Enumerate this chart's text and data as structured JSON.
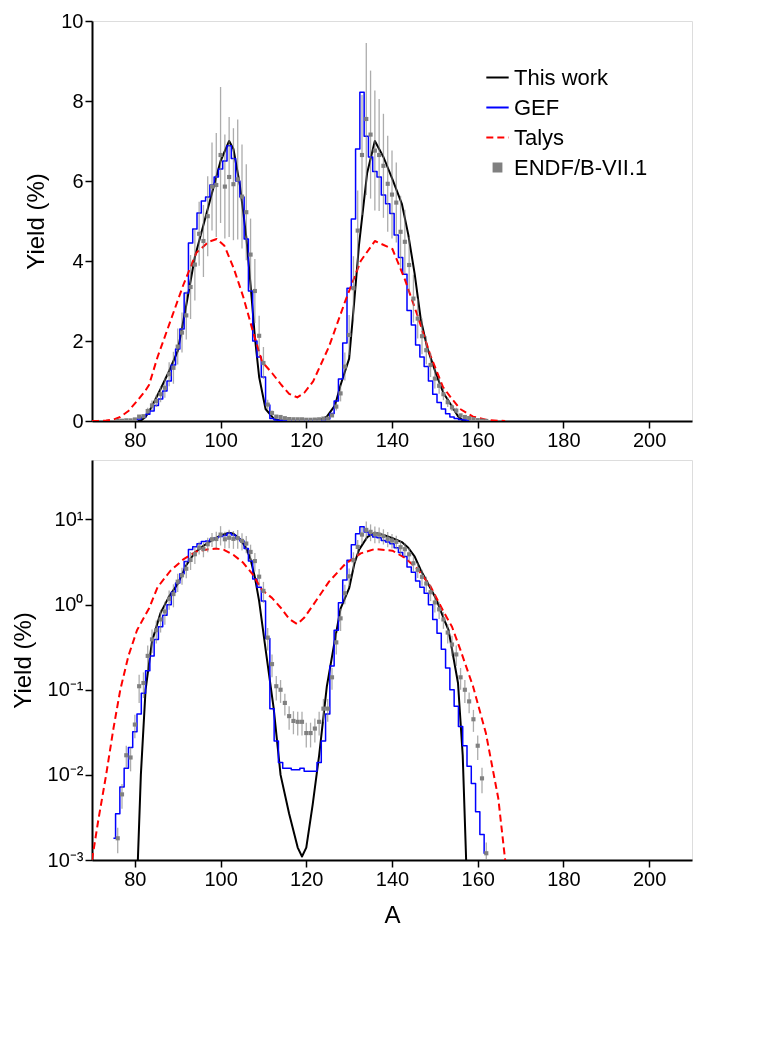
{
  "chart_data": [
    {
      "type": "line",
      "ylabel": "Yield (%)",
      "xlim": [
        70,
        210
      ],
      "xticks": [
        80,
        100,
        120,
        140,
        160,
        180,
        200
      ],
      "ylim": [
        0,
        10
      ],
      "yticks": [
        0,
        2,
        4,
        6,
        8,
        10
      ],
      "grid": false,
      "legend": "top right",
      "series": [
        {
          "name": "This work",
          "color": "#000000",
          "line_style": "solid",
          "x": [
            80.7,
            81.4,
            82.5,
            84,
            86,
            88,
            90,
            92,
            94,
            96,
            98,
            100,
            102,
            103,
            104.5,
            106,
            107,
            108,
            109,
            110.5,
            112.4,
            114,
            116,
            118,
            119,
            120,
            121.5,
            123,
            124.8,
            126.7,
            128,
            130,
            131.2,
            132.3,
            134.2,
            136,
            138,
            140,
            142.3,
            143.8,
            145.3,
            146.7,
            148.2,
            150.4,
            152,
            153.2,
            155.4,
            156.5,
            157.3
          ],
          "values": [
            0.001,
            0.01,
            0.1,
            0.37,
            0.8,
            1.25,
            1.75,
            2.9,
            4.1,
            4.9,
            5.7,
            6.5,
            7.0,
            6.8,
            5.9,
            4.6,
            3.4,
            2.1,
            1.1,
            0.3,
            0.06,
            0.01,
            0.0035,
            0.0014,
            0.0011,
            0.0014,
            0.0045,
            0.017,
            0.11,
            0.39,
            0.9,
            1.56,
            3.0,
            4.4,
            6.2,
            7.0,
            6.6,
            6.07,
            5.43,
            4.66,
            3.67,
            2.55,
            1.84,
            1.14,
            0.7,
            0.5,
            0.12,
            0.017,
            0.001
          ]
        },
        {
          "name": "GEF",
          "type": "step",
          "color": "#0000ff",
          "line_style": "solid",
          "x": [
            80,
            81,
            82,
            83,
            84,
            85,
            86,
            87,
            88,
            89,
            90,
            91,
            92,
            93,
            94,
            95,
            96,
            97,
            98,
            99,
            100,
            101,
            102,
            103,
            104,
            105,
            106,
            107,
            108,
            109,
            110,
            111,
            112,
            113,
            114,
            115,
            116,
            117,
            118,
            119,
            120,
            121,
            122,
            123,
            124,
            125,
            126,
            127,
            128,
            129,
            130,
            131,
            132,
            133,
            134,
            135,
            136,
            137,
            138,
            139,
            140,
            141,
            142,
            143,
            144,
            145,
            146,
            147,
            148,
            149,
            150,
            151,
            152,
            153,
            154,
            155,
            156,
            157,
            158
          ],
          "values": [
            0.032,
            0.052,
            0.091,
            0.167,
            0.25,
            0.39,
            0.55,
            0.75,
            1.0,
            1.4,
            1.8,
            2.3,
            3.2,
            4.45,
            4.8,
            5.2,
            5.5,
            5.6,
            5.9,
            6.1,
            6.3,
            6.5,
            6.88,
            6.56,
            6.0,
            5.6,
            4.55,
            3.25,
            2.0,
            1.6,
            1.1,
            0.4,
            0.06,
            0.025,
            0.014,
            0.012,
            0.012,
            0.0115,
            0.0115,
            0.012,
            0.011,
            0.011,
            0.011,
            0.014,
            0.025,
            0.052,
            0.19,
            0.5,
            1.05,
            1.95,
            3.32,
            5.05,
            6.8,
            8.22,
            7.12,
            6.6,
            6.24,
            6.1,
            5.65,
            5.43,
            5.19,
            4.65,
            4.09,
            3.67,
            2.76,
            2.4,
            1.9,
            1.6,
            1.36,
            1.0,
            0.67,
            0.46,
            0.3,
            0.18,
            0.1,
            0.064,
            0.037,
            0.022,
            0.0126
          ]
        },
        {
          "name": "Talys",
          "color": "#ff0000",
          "line_style": "dashed",
          "x": [
            70,
            71.5,
            73.3,
            75,
            76.6,
            78.5,
            80.5,
            82.4,
            83.3,
            85.3,
            88.3,
            91.3,
            94.3,
            97.2,
            99.1,
            100.9,
            103.1,
            105.3,
            107.5,
            109.7,
            112,
            114.2,
            116,
            117.9,
            119.5,
            121.6,
            125.3,
            129,
            132.7,
            136,
            140.1,
            143,
            146,
            149,
            151.9,
            154,
            155.9,
            158.9,
            161.9,
            164.8,
            166.4
          ],
          "values": [
            0.001,
            0.003,
            0.01,
            0.035,
            0.1,
            0.25,
            0.5,
            0.75,
            0.9,
            1.6,
            2.5,
            3.4,
            4.2,
            4.48,
            4.55,
            4.38,
            3.81,
            3.1,
            2.26,
            1.48,
            1.2,
            0.9,
            0.68,
            0.59,
            0.7,
            0.99,
            1.86,
            2.97,
            4.0,
            4.5,
            4.3,
            3.54,
            2.62,
            1.63,
            0.85,
            0.55,
            0.3,
            0.11,
            0.031,
            0.0053,
            0.001
          ]
        },
        {
          "name": "ENDF/B-VII.1",
          "type": "scatter",
          "color": "#808080",
          "marker": "square",
          "x": [
            76,
            77,
            78,
            79,
            80,
            81,
            82,
            83,
            84,
            85,
            86,
            87,
            88,
            89,
            90,
            91,
            92,
            93,
            94,
            95,
            96,
            97,
            98,
            99,
            100,
            101,
            102,
            103,
            104,
            105,
            106,
            107,
            108,
            109,
            110,
            111,
            112,
            113,
            114,
            115,
            116,
            117,
            118,
            119,
            120,
            121,
            122,
            123,
            124,
            125,
            126,
            127,
            128,
            129,
            130,
            131,
            132,
            133,
            134,
            135,
            136,
            137,
            138,
            139,
            140,
            141,
            142,
            143,
            144,
            145,
            146,
            147,
            148,
            149,
            150,
            151,
            152,
            153,
            154,
            155,
            156,
            157,
            158,
            159,
            160,
            161,
            162
          ],
          "values": [
            0.0018,
            0.0059,
            0.017,
            0.016,
            0.039,
            0.11,
            0.12,
            0.25,
            0.39,
            0.5,
            0.67,
            0.83,
            1.17,
            1.33,
            1.86,
            2.21,
            2.64,
            3.35,
            3.91,
            4.68,
            4.5,
            5.12,
            5.86,
            5.9,
            6.65,
            5.86,
            6.1,
            5.92,
            6.04,
            5.61,
            5.22,
            4.16,
            3.25,
            2.13,
            1.45,
            0.41,
            0.2,
            0.11,
            0.1,
            0.07,
            0.049,
            0.043,
            0.042,
            0.042,
            0.031,
            0.031,
            0.035,
            0.042,
            0.06,
            0.06,
            0.14,
            0.36,
            0.69,
            1.36,
            2.15,
            3.32,
            4.76,
            6.65,
            7.55,
            7.16,
            6.76,
            6.65,
            6.38,
            5.93,
            5.66,
            5.46,
            4.73,
            4.48,
            3.9,
            3.06,
            2.56,
            2.12,
            1.77,
            1.4,
            1.06,
            0.88,
            0.67,
            0.47,
            0.34,
            0.26,
            0.14,
            0.1,
            0.073,
            0.045,
            0.022,
            0.0091,
            0.0012
          ],
          "errors": [
            null,
            null,
            null,
            null,
            null,
            0.04,
            0.04,
            0.08,
            0.12,
            0.15,
            0.2,
            0.25,
            0.3,
            0.4,
            0.45,
            0.5,
            0.6,
            0.8,
            0.9,
            0.8,
            0.9,
            1.0,
            1.1,
            1.3,
            1.7,
            1.3,
            1.5,
            1.4,
            1.5,
            1.3,
            1.2,
            0.9,
            0.8,
            0.5,
            0.4,
            0.12,
            0.06,
            0.035,
            0.03,
            0.02,
            null,
            null,
            null,
            null,
            null,
            null,
            null,
            null,
            null,
            null,
            0.04,
            0.1,
            0.2,
            0.35,
            0.5,
            0.8,
            1.0,
            1.5,
            1.9,
            1.6,
            1.5,
            1.4,
            1.3,
            1.2,
            1.1,
            1.0,
            0.9,
            0.8,
            0.7,
            0.6,
            0.5,
            0.45,
            0.35,
            0.3,
            0.25,
            0.2,
            0.15,
            0.12,
            0.09,
            0.07,
            0.04,
            0.03,
            0.02,
            null,
            null,
            null,
            null
          ]
        }
      ]
    },
    {
      "type": "line",
      "xlabel": "A",
      "ylabel": "Yield (%)",
      "log": "y",
      "xlim": [
        70,
        210
      ],
      "xticks": [
        80,
        100,
        120,
        140,
        160,
        180,
        200
      ],
      "ylim": [
        0.001,
        50
      ],
      "yticks": [
        {
          "value": 0.001,
          "label": "10⁻³"
        },
        {
          "value": 0.01,
          "label": "10⁻²"
        },
        {
          "value": 0.1,
          "label": "10⁻¹"
        },
        {
          "value": 1,
          "label": "10⁰"
        },
        {
          "value": 10,
          "label": "10¹"
        }
      ],
      "grid": false,
      "series": [
        {
          "name": "This work",
          "color": "#000000",
          "line_style": "solid",
          "x": [
            80.7,
            81.4,
            82.5,
            84,
            86,
            88,
            90,
            92,
            94,
            96,
            98,
            100,
            102,
            103,
            104.5,
            106,
            107,
            108,
            109,
            110.5,
            112.4,
            114,
            116,
            118,
            119,
            120,
            121.5,
            123,
            124.8,
            126.7,
            128,
            130,
            131.2,
            132.3,
            134.2,
            136,
            138,
            140,
            142.3,
            143.8,
            145.3,
            146.7,
            148.2,
            150.4,
            152,
            153.2,
            155.4,
            156.5,
            157.3
          ],
          "values": [
            0.001,
            0.01,
            0.1,
            0.37,
            0.8,
            1.25,
            1.75,
            2.9,
            4.1,
            4.9,
            5.7,
            6.5,
            7.0,
            6.8,
            5.9,
            4.6,
            3.4,
            2.1,
            1.1,
            0.3,
            0.06,
            0.01,
            0.0035,
            0.0014,
            0.0011,
            0.0014,
            0.0045,
            0.017,
            0.11,
            0.39,
            0.9,
            1.56,
            3.0,
            4.4,
            6.2,
            7.0,
            6.6,
            6.07,
            5.43,
            4.66,
            3.67,
            2.55,
            1.84,
            1.14,
            0.7,
            0.5,
            0.12,
            0.017,
            0.001
          ]
        },
        {
          "name": "GEF",
          "type": "step",
          "color": "#0000ff",
          "line_style": "solid",
          "x": [
            75,
            76,
            77,
            78,
            79,
            80,
            81,
            82,
            83,
            84,
            85,
            86,
            87,
            88,
            89,
            90,
            91,
            92,
            93,
            94,
            95,
            96,
            97,
            98,
            99,
            100,
            101,
            102,
            103,
            104,
            105,
            106,
            107,
            108,
            109,
            110,
            111,
            112,
            113,
            114,
            115,
            116,
            117,
            118,
            119,
            120,
            121,
            122,
            123,
            124,
            125,
            126,
            127,
            128,
            129,
            130,
            131,
            132,
            133,
            134,
            135,
            136,
            137,
            138,
            139,
            140,
            141,
            142,
            143,
            144,
            145,
            146,
            147,
            148,
            149,
            150,
            151,
            152,
            153,
            154,
            155,
            156,
            157,
            158,
            159,
            160,
            161,
            162
          ],
          "values": [
            0.0018,
            0.0035,
            0.0072,
            0.012,
            0.021,
            0.032,
            0.052,
            0.091,
            0.167,
            0.25,
            0.39,
            0.55,
            0.75,
            1.0,
            1.4,
            1.8,
            2.3,
            3.2,
            4.45,
            4.8,
            5.2,
            5.5,
            5.6,
            5.9,
            6.1,
            6.3,
            6.5,
            6.88,
            6.56,
            6.0,
            5.6,
            4.55,
            3.25,
            2.0,
            1.6,
            1.1,
            0.4,
            0.06,
            0.025,
            0.014,
            0.012,
            0.012,
            0.0115,
            0.0115,
            0.012,
            0.011,
            0.011,
            0.011,
            0.014,
            0.025,
            0.052,
            0.19,
            0.5,
            1.05,
            1.95,
            3.32,
            5.05,
            6.8,
            8.22,
            7.12,
            6.6,
            6.24,
            6.1,
            5.65,
            5.43,
            5.19,
            4.65,
            4.09,
            3.67,
            2.76,
            2.4,
            1.9,
            1.6,
            1.36,
            1.0,
            0.67,
            0.46,
            0.3,
            0.18,
            0.1,
            0.064,
            0.037,
            0.022,
            0.0126,
            0.0079,
            0.0037,
            0.002,
            0.0012
          ]
        },
        {
          "name": "Talys",
          "color": "#ff0000",
          "line_style": "dashed",
          "x": [
            70,
            71.5,
            73.3,
            75,
            76.6,
            78.5,
            80.5,
            82.4,
            83.3,
            85.3,
            88.3,
            91.3,
            94.3,
            97.2,
            99.1,
            100.9,
            103.1,
            105.3,
            107.5,
            109.7,
            112,
            114.2,
            116,
            117.9,
            119.5,
            121.6,
            125.3,
            129,
            132.7,
            136,
            140.1,
            143,
            146,
            149,
            151.9,
            154,
            155.9,
            158.9,
            161.9,
            164.8,
            166.4
          ],
          "values": [
            0.001,
            0.003,
            0.01,
            0.035,
            0.1,
            0.25,
            0.5,
            0.75,
            0.9,
            1.6,
            2.5,
            3.4,
            4.2,
            4.48,
            4.55,
            4.38,
            3.81,
            3.1,
            2.26,
            1.48,
            1.2,
            0.9,
            0.68,
            0.59,
            0.7,
            0.99,
            1.86,
            2.97,
            4.0,
            4.5,
            4.3,
            3.54,
            2.62,
            1.63,
            0.85,
            0.55,
            0.3,
            0.11,
            0.031,
            0.0053,
            0.001
          ]
        },
        {
          "name": "ENDF/B-VII.1",
          "type": "scatter",
          "color": "#808080",
          "marker": "square",
          "x": [
            76,
            77,
            78,
            79,
            80,
            81,
            82,
            83,
            84,
            85,
            86,
            87,
            88,
            89,
            90,
            91,
            92,
            93,
            94,
            95,
            96,
            97,
            98,
            99,
            100,
            101,
            102,
            103,
            104,
            105,
            106,
            107,
            108,
            109,
            110,
            111,
            112,
            113,
            114,
            115,
            116,
            117,
            118,
            119,
            120,
            121,
            122,
            123,
            124,
            125,
            126,
            127,
            128,
            129,
            130,
            131,
            132,
            133,
            134,
            135,
            136,
            137,
            138,
            139,
            140,
            141,
            142,
            143,
            144,
            145,
            146,
            147,
            148,
            149,
            150,
            151,
            152,
            153,
            154,
            155,
            156,
            157,
            158,
            159,
            160,
            161,
            162
          ],
          "values": [
            0.0018,
            0.0059,
            0.017,
            0.016,
            0.039,
            0.11,
            0.12,
            0.25,
            0.39,
            0.5,
            0.67,
            0.83,
            1.17,
            1.33,
            1.86,
            2.21,
            2.64,
            3.35,
            3.91,
            4.68,
            4.5,
            5.12,
            5.86,
            5.9,
            6.65,
            5.86,
            6.1,
            5.92,
            6.04,
            5.61,
            5.22,
            4.16,
            3.25,
            2.13,
            1.45,
            0.41,
            0.2,
            0.11,
            0.1,
            0.07,
            0.049,
            0.043,
            0.042,
            0.042,
            0.031,
            0.031,
            0.035,
            0.042,
            0.06,
            0.06,
            0.14,
            0.36,
            0.69,
            1.36,
            2.15,
            3.32,
            4.76,
            6.65,
            7.55,
            7.16,
            6.76,
            6.65,
            6.38,
            5.93,
            5.66,
            5.46,
            4.73,
            4.48,
            3.9,
            3.06,
            2.56,
            2.12,
            1.77,
            1.4,
            1.06,
            0.88,
            0.67,
            0.47,
            0.34,
            0.26,
            0.14,
            0.1,
            0.073,
            0.045,
            0.022,
            0.0091,
            0.0012
          ],
          "errors": [
            0.0006,
            0.0019,
            0.005,
            0.005,
            0.012,
            0.04,
            0.04,
            0.08,
            0.12,
            0.15,
            0.2,
            0.25,
            0.3,
            0.4,
            0.45,
            0.5,
            0.6,
            0.8,
            0.9,
            0.8,
            0.9,
            1.0,
            1.1,
            1.3,
            1.7,
            1.3,
            1.5,
            1.4,
            1.5,
            1.3,
            1.2,
            0.9,
            0.8,
            0.5,
            0.4,
            0.12,
            0.06,
            0.035,
            0.03,
            0.02,
            0.015,
            0.013,
            0.013,
            0.013,
            0.01,
            0.01,
            0.011,
            0.013,
            0.018,
            0.018,
            0.04,
            0.1,
            0.2,
            0.35,
            0.5,
            0.8,
            1.0,
            1.5,
            1.9,
            1.6,
            1.5,
            1.4,
            1.3,
            1.2,
            1.1,
            1.0,
            0.9,
            0.8,
            0.7,
            0.6,
            0.5,
            0.45,
            0.35,
            0.3,
            0.25,
            0.2,
            0.15,
            0.12,
            0.09,
            0.07,
            0.04,
            0.03,
            0.02,
            0.013,
            0.007,
            0.003,
            0.0004
          ]
        }
      ]
    }
  ]
}
